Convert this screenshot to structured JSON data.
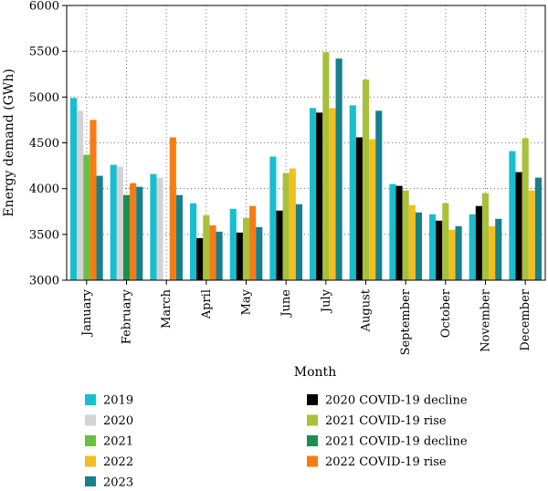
{
  "chart_data": {
    "type": "bar",
    "title": "",
    "xlabel": "Month",
    "ylabel": "Energy demand (GWh)",
    "ylim": [
      3000,
      6000
    ],
    "yticks": [
      3000,
      3500,
      4000,
      4500,
      5000,
      5500,
      6000
    ],
    "grid": "dotted",
    "legend_position": "bottom",
    "categories": [
      "January",
      "February",
      "March",
      "April",
      "May",
      "June",
      "July",
      "August",
      "September",
      "October",
      "November",
      "December"
    ],
    "series": [
      {
        "name": "2019",
        "color": "#17becf",
        "values": [
          4990,
          4260,
          4160,
          3840,
          3780,
          4350,
          4880,
          4910,
          4050,
          3720,
          3720,
          4410
        ]
      },
      {
        "name": "2020",
        "color": "#d3d3d3",
        "values": [
          4850,
          4240,
          4120,
          null,
          null,
          null,
          null,
          null,
          null,
          null,
          null,
          null
        ]
      },
      {
        "name": "2021",
        "color": "#6abf40",
        "values": [
          4370,
          null,
          null,
          null,
          null,
          null,
          null,
          null,
          null,
          null,
          null,
          null
        ]
      },
      {
        "name": "2022",
        "color": "#f0c020",
        "values": [
          null,
          null,
          null,
          null,
          null,
          4220,
          4880,
          4540,
          3820,
          3550,
          3590,
          3980
        ]
      },
      {
        "name": "2023",
        "color": "#17808a",
        "values": [
          4140,
          4020,
          3930,
          3530,
          3580,
          3830,
          5420,
          4850,
          3740,
          3590,
          3670,
          4120
        ]
      },
      {
        "name": "2020 COVID-19 decline",
        "color": "#000000",
        "values": [
          null,
          null,
          null,
          3460,
          3520,
          3760,
          4830,
          4560,
          4030,
          3650,
          3810,
          4180
        ]
      },
      {
        "name": "2021 COVID-19 rise",
        "color": "#a8c03a",
        "values": [
          null,
          null,
          null,
          3710,
          3680,
          4170,
          5490,
          5190,
          3980,
          3840,
          3950,
          4550
        ]
      },
      {
        "name": "2021 COVID-19 decline",
        "color": "#1a8f4c",
        "values": [
          null,
          3930,
          null,
          null,
          null,
          null,
          null,
          null,
          null,
          null,
          null,
          null
        ]
      },
      {
        "name": "2022 COVID-19 rise",
        "color": "#f57c14",
        "values": [
          4750,
          4060,
          4560,
          3600,
          3810,
          null,
          null,
          null,
          null,
          null,
          null,
          null
        ]
      }
    ],
    "bar_slots": [
      [
        "2019",
        "2020",
        "2021",
        "2022 COVID-19 rise",
        "2023"
      ],
      [
        "2019",
        "2020",
        "2021 COVID-19 decline",
        "2022 COVID-19 rise",
        "2023"
      ],
      [
        "2019",
        "2020",
        "2021",
        "2022 COVID-19 rise",
        "2023"
      ],
      [
        "2019",
        "2020 COVID-19 decline",
        "2021 COVID-19 rise",
        "2022 COVID-19 rise",
        "2023"
      ],
      [
        "2019",
        "2020 COVID-19 decline",
        "2021 COVID-19 rise",
        "2022 COVID-19 rise",
        "2023"
      ],
      [
        "2019",
        "2020 COVID-19 decline",
        "2021 COVID-19 rise",
        "2022",
        "2023"
      ],
      [
        "2019",
        "2020 COVID-19 decline",
        "2021 COVID-19 rise",
        "2022",
        "2023"
      ],
      [
        "2019",
        "2020 COVID-19 decline",
        "2021 COVID-19 rise",
        "2022",
        "2023"
      ],
      [
        "2019",
        "2020 COVID-19 decline",
        "2021 COVID-19 rise",
        "2022",
        "2023"
      ],
      [
        "2019",
        "2020 COVID-19 decline",
        "2021 COVID-19 rise",
        "2022",
        "2023"
      ],
      [
        "2019",
        "2020 COVID-19 decline",
        "2021 COVID-19 rise",
        "2022",
        "2023"
      ],
      [
        "2019",
        "2020 COVID-19 decline",
        "2021 COVID-19 rise",
        "2022",
        "2023"
      ]
    ],
    "legend_columns": [
      [
        "2019",
        "2020",
        "2021",
        "2022",
        "2023"
      ],
      [
        "2020 COVID-19 decline",
        "2021 COVID-19 rise",
        "2021 COVID-19 decline",
        "2022 COVID-19 rise"
      ]
    ]
  }
}
